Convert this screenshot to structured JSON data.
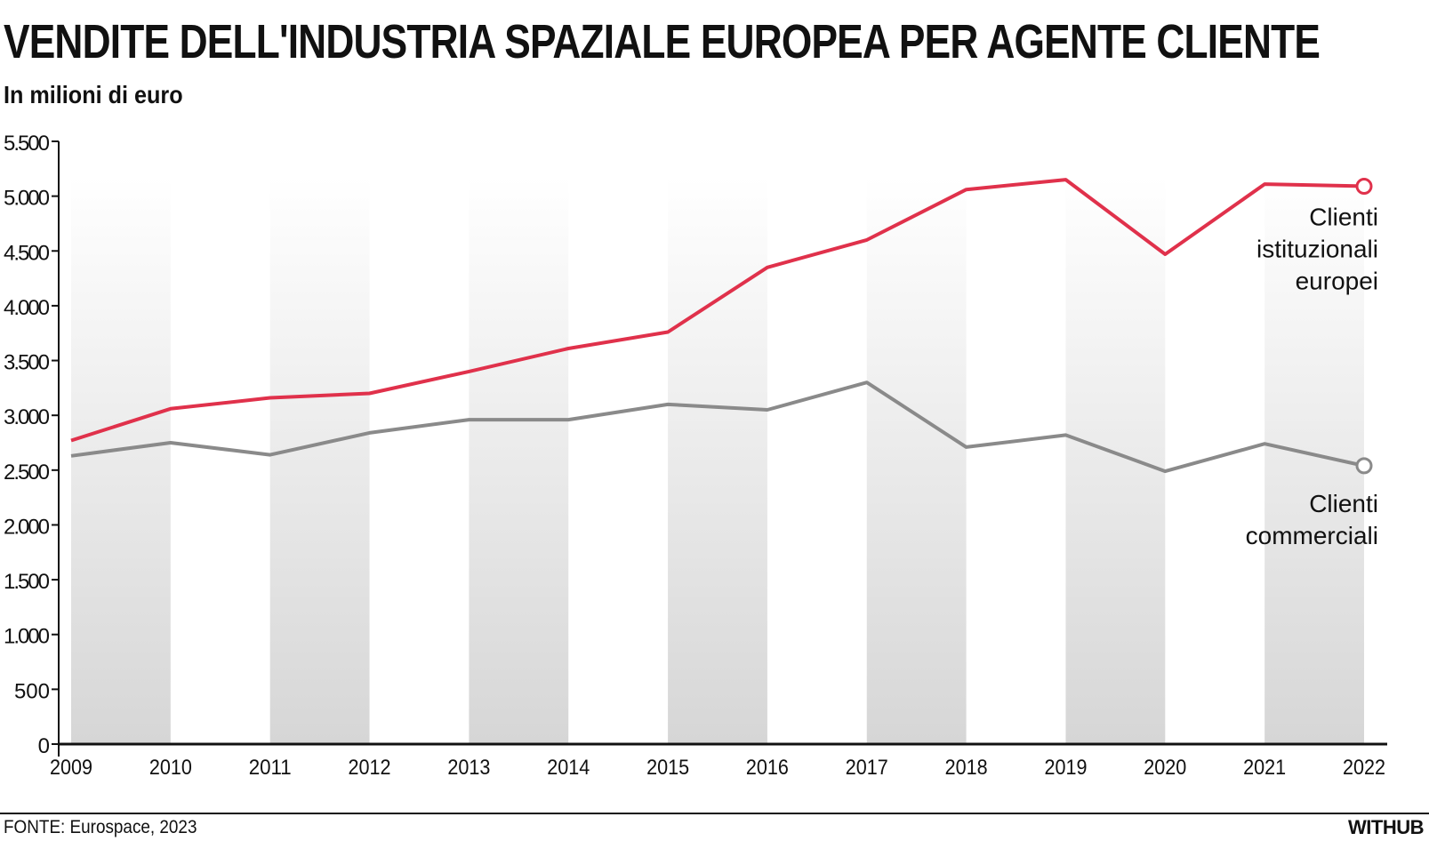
{
  "header": {
    "title": "VENDITE DELL'INDUSTRIA SPAZIALE EUROPEA PER AGENTE CLIENTE",
    "subtitle": "In milioni di euro"
  },
  "footer": {
    "source": "FONTE: Eurospace, 2023",
    "brand": "WITHUB"
  },
  "colors": {
    "institutional": "#e0314b",
    "commercial": "#8a8a8a",
    "band": "#dcdcdc"
  },
  "chart_data": {
    "type": "line",
    "title": "VENDITE DELL'INDUSTRIA SPAZIALE EUROPEA PER AGENTE CLIENTE",
    "ylabel": "In milioni di euro",
    "xlabel": "",
    "x": [
      "2009",
      "2010",
      "2011",
      "2012",
      "2013",
      "2014",
      "2015",
      "2016",
      "2017",
      "2018",
      "2019",
      "2020",
      "2021",
      "2022"
    ],
    "ylim": [
      0,
      5500
    ],
    "yticks": [
      0,
      500,
      1000,
      1500,
      2000,
      2500,
      3000,
      3500,
      4000,
      4500,
      5000,
      5500
    ],
    "ytick_labels": [
      "0",
      "500",
      "1.000",
      "1.500",
      "2.000",
      "2.500",
      "3.000",
      "3.500",
      "4.000",
      "4.500",
      "5.000",
      "5.500"
    ],
    "series": [
      {
        "name": "Clienti istituzionali europei",
        "label_lines": [
          "Clienti",
          "istituzionali",
          "europei"
        ],
        "color": "#e0314b",
        "values": [
          2770,
          3060,
          3160,
          3200,
          3400,
          3610,
          3760,
          4350,
          4600,
          5060,
          5150,
          4470,
          5110,
          5090
        ]
      },
      {
        "name": "Clienti commerciali",
        "label_lines": [
          "Clienti",
          "commerciali"
        ],
        "color": "#8a8a8a",
        "values": [
          2630,
          2750,
          2640,
          2840,
          2960,
          2960,
          3100,
          3050,
          3300,
          2710,
          2820,
          2490,
          2740,
          2540
        ]
      }
    ],
    "grid": false,
    "alternating_bands": true
  }
}
